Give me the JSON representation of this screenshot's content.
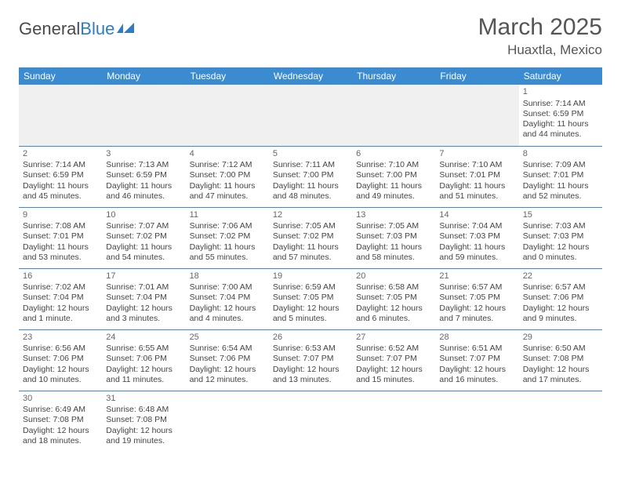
{
  "logo": {
    "text1": "General",
    "text2": "Blue"
  },
  "title": "March 2025",
  "location": "Huaxtla, Mexico",
  "colors": {
    "header_bg": "#3b8bd0",
    "header_fg": "#ffffff",
    "cell_border": "#3b8bd0",
    "empty_bg": "#f0f0f0",
    "text": "#444444",
    "title_color": "#555555",
    "logo_gray": "#4a4a4a",
    "logo_blue": "#2f7cc4"
  },
  "weekdays": [
    "Sunday",
    "Monday",
    "Tuesday",
    "Wednesday",
    "Thursday",
    "Friday",
    "Saturday"
  ],
  "first_weekday_index": 6,
  "days": [
    {
      "n": 1,
      "sunrise": "7:14 AM",
      "sunset": "6:59 PM",
      "daylight": "11 hours and 44 minutes."
    },
    {
      "n": 2,
      "sunrise": "7:14 AM",
      "sunset": "6:59 PM",
      "daylight": "11 hours and 45 minutes."
    },
    {
      "n": 3,
      "sunrise": "7:13 AM",
      "sunset": "6:59 PM",
      "daylight": "11 hours and 46 minutes."
    },
    {
      "n": 4,
      "sunrise": "7:12 AM",
      "sunset": "7:00 PM",
      "daylight": "11 hours and 47 minutes."
    },
    {
      "n": 5,
      "sunrise": "7:11 AM",
      "sunset": "7:00 PM",
      "daylight": "11 hours and 48 minutes."
    },
    {
      "n": 6,
      "sunrise": "7:10 AM",
      "sunset": "7:00 PM",
      "daylight": "11 hours and 49 minutes."
    },
    {
      "n": 7,
      "sunrise": "7:10 AM",
      "sunset": "7:01 PM",
      "daylight": "11 hours and 51 minutes."
    },
    {
      "n": 8,
      "sunrise": "7:09 AM",
      "sunset": "7:01 PM",
      "daylight": "11 hours and 52 minutes."
    },
    {
      "n": 9,
      "sunrise": "7:08 AM",
      "sunset": "7:01 PM",
      "daylight": "11 hours and 53 minutes."
    },
    {
      "n": 10,
      "sunrise": "7:07 AM",
      "sunset": "7:02 PM",
      "daylight": "11 hours and 54 minutes."
    },
    {
      "n": 11,
      "sunrise": "7:06 AM",
      "sunset": "7:02 PM",
      "daylight": "11 hours and 55 minutes."
    },
    {
      "n": 12,
      "sunrise": "7:05 AM",
      "sunset": "7:02 PM",
      "daylight": "11 hours and 57 minutes."
    },
    {
      "n": 13,
      "sunrise": "7:05 AM",
      "sunset": "7:03 PM",
      "daylight": "11 hours and 58 minutes."
    },
    {
      "n": 14,
      "sunrise": "7:04 AM",
      "sunset": "7:03 PM",
      "daylight": "11 hours and 59 minutes."
    },
    {
      "n": 15,
      "sunrise": "7:03 AM",
      "sunset": "7:03 PM",
      "daylight": "12 hours and 0 minutes."
    },
    {
      "n": 16,
      "sunrise": "7:02 AM",
      "sunset": "7:04 PM",
      "daylight": "12 hours and 1 minute."
    },
    {
      "n": 17,
      "sunrise": "7:01 AM",
      "sunset": "7:04 PM",
      "daylight": "12 hours and 3 minutes."
    },
    {
      "n": 18,
      "sunrise": "7:00 AM",
      "sunset": "7:04 PM",
      "daylight": "12 hours and 4 minutes."
    },
    {
      "n": 19,
      "sunrise": "6:59 AM",
      "sunset": "7:05 PM",
      "daylight": "12 hours and 5 minutes."
    },
    {
      "n": 20,
      "sunrise": "6:58 AM",
      "sunset": "7:05 PM",
      "daylight": "12 hours and 6 minutes."
    },
    {
      "n": 21,
      "sunrise": "6:57 AM",
      "sunset": "7:05 PM",
      "daylight": "12 hours and 7 minutes."
    },
    {
      "n": 22,
      "sunrise": "6:57 AM",
      "sunset": "7:06 PM",
      "daylight": "12 hours and 9 minutes."
    },
    {
      "n": 23,
      "sunrise": "6:56 AM",
      "sunset": "7:06 PM",
      "daylight": "12 hours and 10 minutes."
    },
    {
      "n": 24,
      "sunrise": "6:55 AM",
      "sunset": "7:06 PM",
      "daylight": "12 hours and 11 minutes."
    },
    {
      "n": 25,
      "sunrise": "6:54 AM",
      "sunset": "7:06 PM",
      "daylight": "12 hours and 12 minutes."
    },
    {
      "n": 26,
      "sunrise": "6:53 AM",
      "sunset": "7:07 PM",
      "daylight": "12 hours and 13 minutes."
    },
    {
      "n": 27,
      "sunrise": "6:52 AM",
      "sunset": "7:07 PM",
      "daylight": "12 hours and 15 minutes."
    },
    {
      "n": 28,
      "sunrise": "6:51 AM",
      "sunset": "7:07 PM",
      "daylight": "12 hours and 16 minutes."
    },
    {
      "n": 29,
      "sunrise": "6:50 AM",
      "sunset": "7:08 PM",
      "daylight": "12 hours and 17 minutes."
    },
    {
      "n": 30,
      "sunrise": "6:49 AM",
      "sunset": "7:08 PM",
      "daylight": "12 hours and 18 minutes."
    },
    {
      "n": 31,
      "sunrise": "6:48 AM",
      "sunset": "7:08 PM",
      "daylight": "12 hours and 19 minutes."
    }
  ],
  "labels": {
    "sunrise": "Sunrise: ",
    "sunset": "Sunset: ",
    "daylight": "Daylight: "
  }
}
